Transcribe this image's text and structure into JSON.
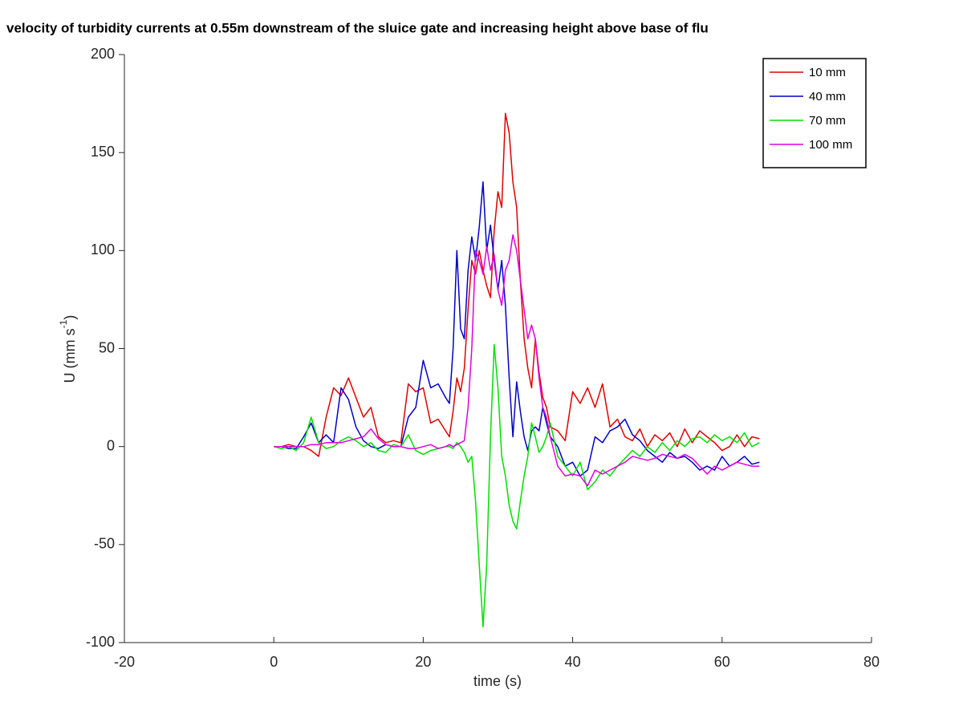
{
  "chart_data": {
    "type": "line",
    "title": "velocity of turbidity currents at 0.55m downstream of the sluice gate and increasing height above base of flu",
    "xlabel": "time (s)",
    "ylabel": {
      "text": "U (mm s",
      "superscript": "-1",
      "suffix": ")"
    },
    "xlim": [
      -20,
      80
    ],
    "xticks": [
      -20,
      0,
      20,
      40,
      60,
      80
    ],
    "ylim": [
      -100,
      200
    ],
    "yticks": [
      -100,
      -50,
      0,
      50,
      100,
      150,
      200
    ],
    "legend": "upper right",
    "x": [
      0,
      1,
      2,
      3,
      4,
      5,
      6,
      7,
      8,
      9,
      10,
      11,
      12,
      13,
      14,
      15,
      16,
      17,
      18,
      19,
      20,
      21,
      22,
      23,
      23.5,
      24,
      24.5,
      25,
      25.5,
      26,
      26.5,
      27,
      27.5,
      28,
      28.5,
      29,
      29.5,
      30,
      30.5,
      31,
      31.5,
      32,
      32.5,
      33,
      33.5,
      34,
      34.5,
      35,
      35.5,
      36,
      36.5,
      37,
      38,
      39,
      40,
      41,
      42,
      43,
      44,
      45,
      46,
      47,
      48,
      49,
      50,
      51,
      52,
      53,
      54,
      55,
      56,
      57,
      58,
      59,
      60,
      61,
      62,
      63,
      64,
      65
    ],
    "series": [
      {
        "name": "10 mm",
        "color": "#e00000",
        "values": [
          0,
          0,
          1,
          0,
          0,
          -2,
          -5,
          15,
          30,
          26,
          35,
          25,
          15,
          20,
          5,
          2,
          3,
          2,
          32,
          28,
          30,
          12,
          14,
          8,
          5,
          18,
          35,
          28,
          40,
          70,
          95,
          88,
          100,
          90,
          82,
          76,
          110,
          130,
          122,
          170,
          160,
          135,
          122,
          85,
          55,
          40,
          30,
          55,
          38,
          25,
          20,
          10,
          8,
          3,
          28,
          22,
          30,
          20,
          32,
          10,
          14,
          5,
          3,
          9,
          0,
          6,
          3,
          7,
          0,
          9,
          2,
          8,
          5,
          2,
          -2,
          0,
          6,
          0,
          5,
          4
        ]
      },
      {
        "name": "40 mm",
        "color": "#0000c8",
        "values": [
          0,
          0,
          -1,
          -1,
          5,
          12,
          2,
          6,
          2,
          30,
          24,
          10,
          3,
          0,
          -1,
          1,
          0,
          0,
          15,
          20,
          44,
          30,
          32,
          25,
          22,
          50,
          100,
          60,
          55,
          90,
          107,
          95,
          112,
          135,
          100,
          113,
          95,
          80,
          95,
          72,
          35,
          5,
          33,
          18,
          5,
          -2,
          8,
          10,
          8,
          20,
          12,
          5,
          0,
          -10,
          -8,
          -15,
          -12,
          5,
          2,
          8,
          10,
          14,
          6,
          3,
          -2,
          -5,
          -8,
          -3,
          -6,
          -5,
          -8,
          -12,
          -10,
          -12,
          -5,
          -10,
          -8,
          -5,
          -9,
          -8
        ]
      },
      {
        "name": "70 mm",
        "color": "#00e000",
        "values": [
          0,
          -1,
          0,
          -2,
          2,
          15,
          2,
          -1,
          0,
          3,
          5,
          3,
          0,
          2,
          -2,
          -3,
          1,
          0,
          6,
          -2,
          -4,
          -2,
          -1,
          0,
          0,
          -1,
          2,
          0,
          -3,
          -8,
          -5,
          -28,
          -60,
          -92,
          -60,
          5,
          52,
          30,
          -5,
          -15,
          -30,
          -38,
          -42,
          -28,
          -15,
          -5,
          12,
          5,
          -3,
          0,
          5,
          12,
          -5,
          -10,
          -15,
          -8,
          -22,
          -18,
          -12,
          -15,
          -10,
          -6,
          -2,
          -5,
          0,
          -3,
          2,
          -2,
          3,
          0,
          4,
          5,
          2,
          6,
          3,
          5,
          2,
          7,
          0,
          2
        ]
      },
      {
        "name": "100 mm",
        "color": "#e000e0",
        "values": [
          0,
          0,
          0,
          0,
          0,
          1,
          1,
          2,
          2,
          2,
          3,
          4,
          5,
          9,
          4,
          1,
          0,
          0,
          -1,
          -1,
          0,
          1,
          -1,
          0,
          1,
          0,
          1,
          2,
          3,
          20,
          50,
          100,
          95,
          88,
          102,
          90,
          98,
          80,
          72,
          90,
          95,
          108,
          100,
          85,
          70,
          55,
          62,
          55,
          35,
          20,
          15,
          5,
          -10,
          -15,
          -14,
          -15,
          -20,
          -12,
          -14,
          -12,
          -10,
          -8,
          -5,
          -6,
          -7,
          -6,
          -4,
          -5,
          -6,
          -4,
          -6,
          -10,
          -14,
          -10,
          -12,
          -10,
          -8,
          -9,
          -10,
          -10
        ]
      }
    ]
  }
}
